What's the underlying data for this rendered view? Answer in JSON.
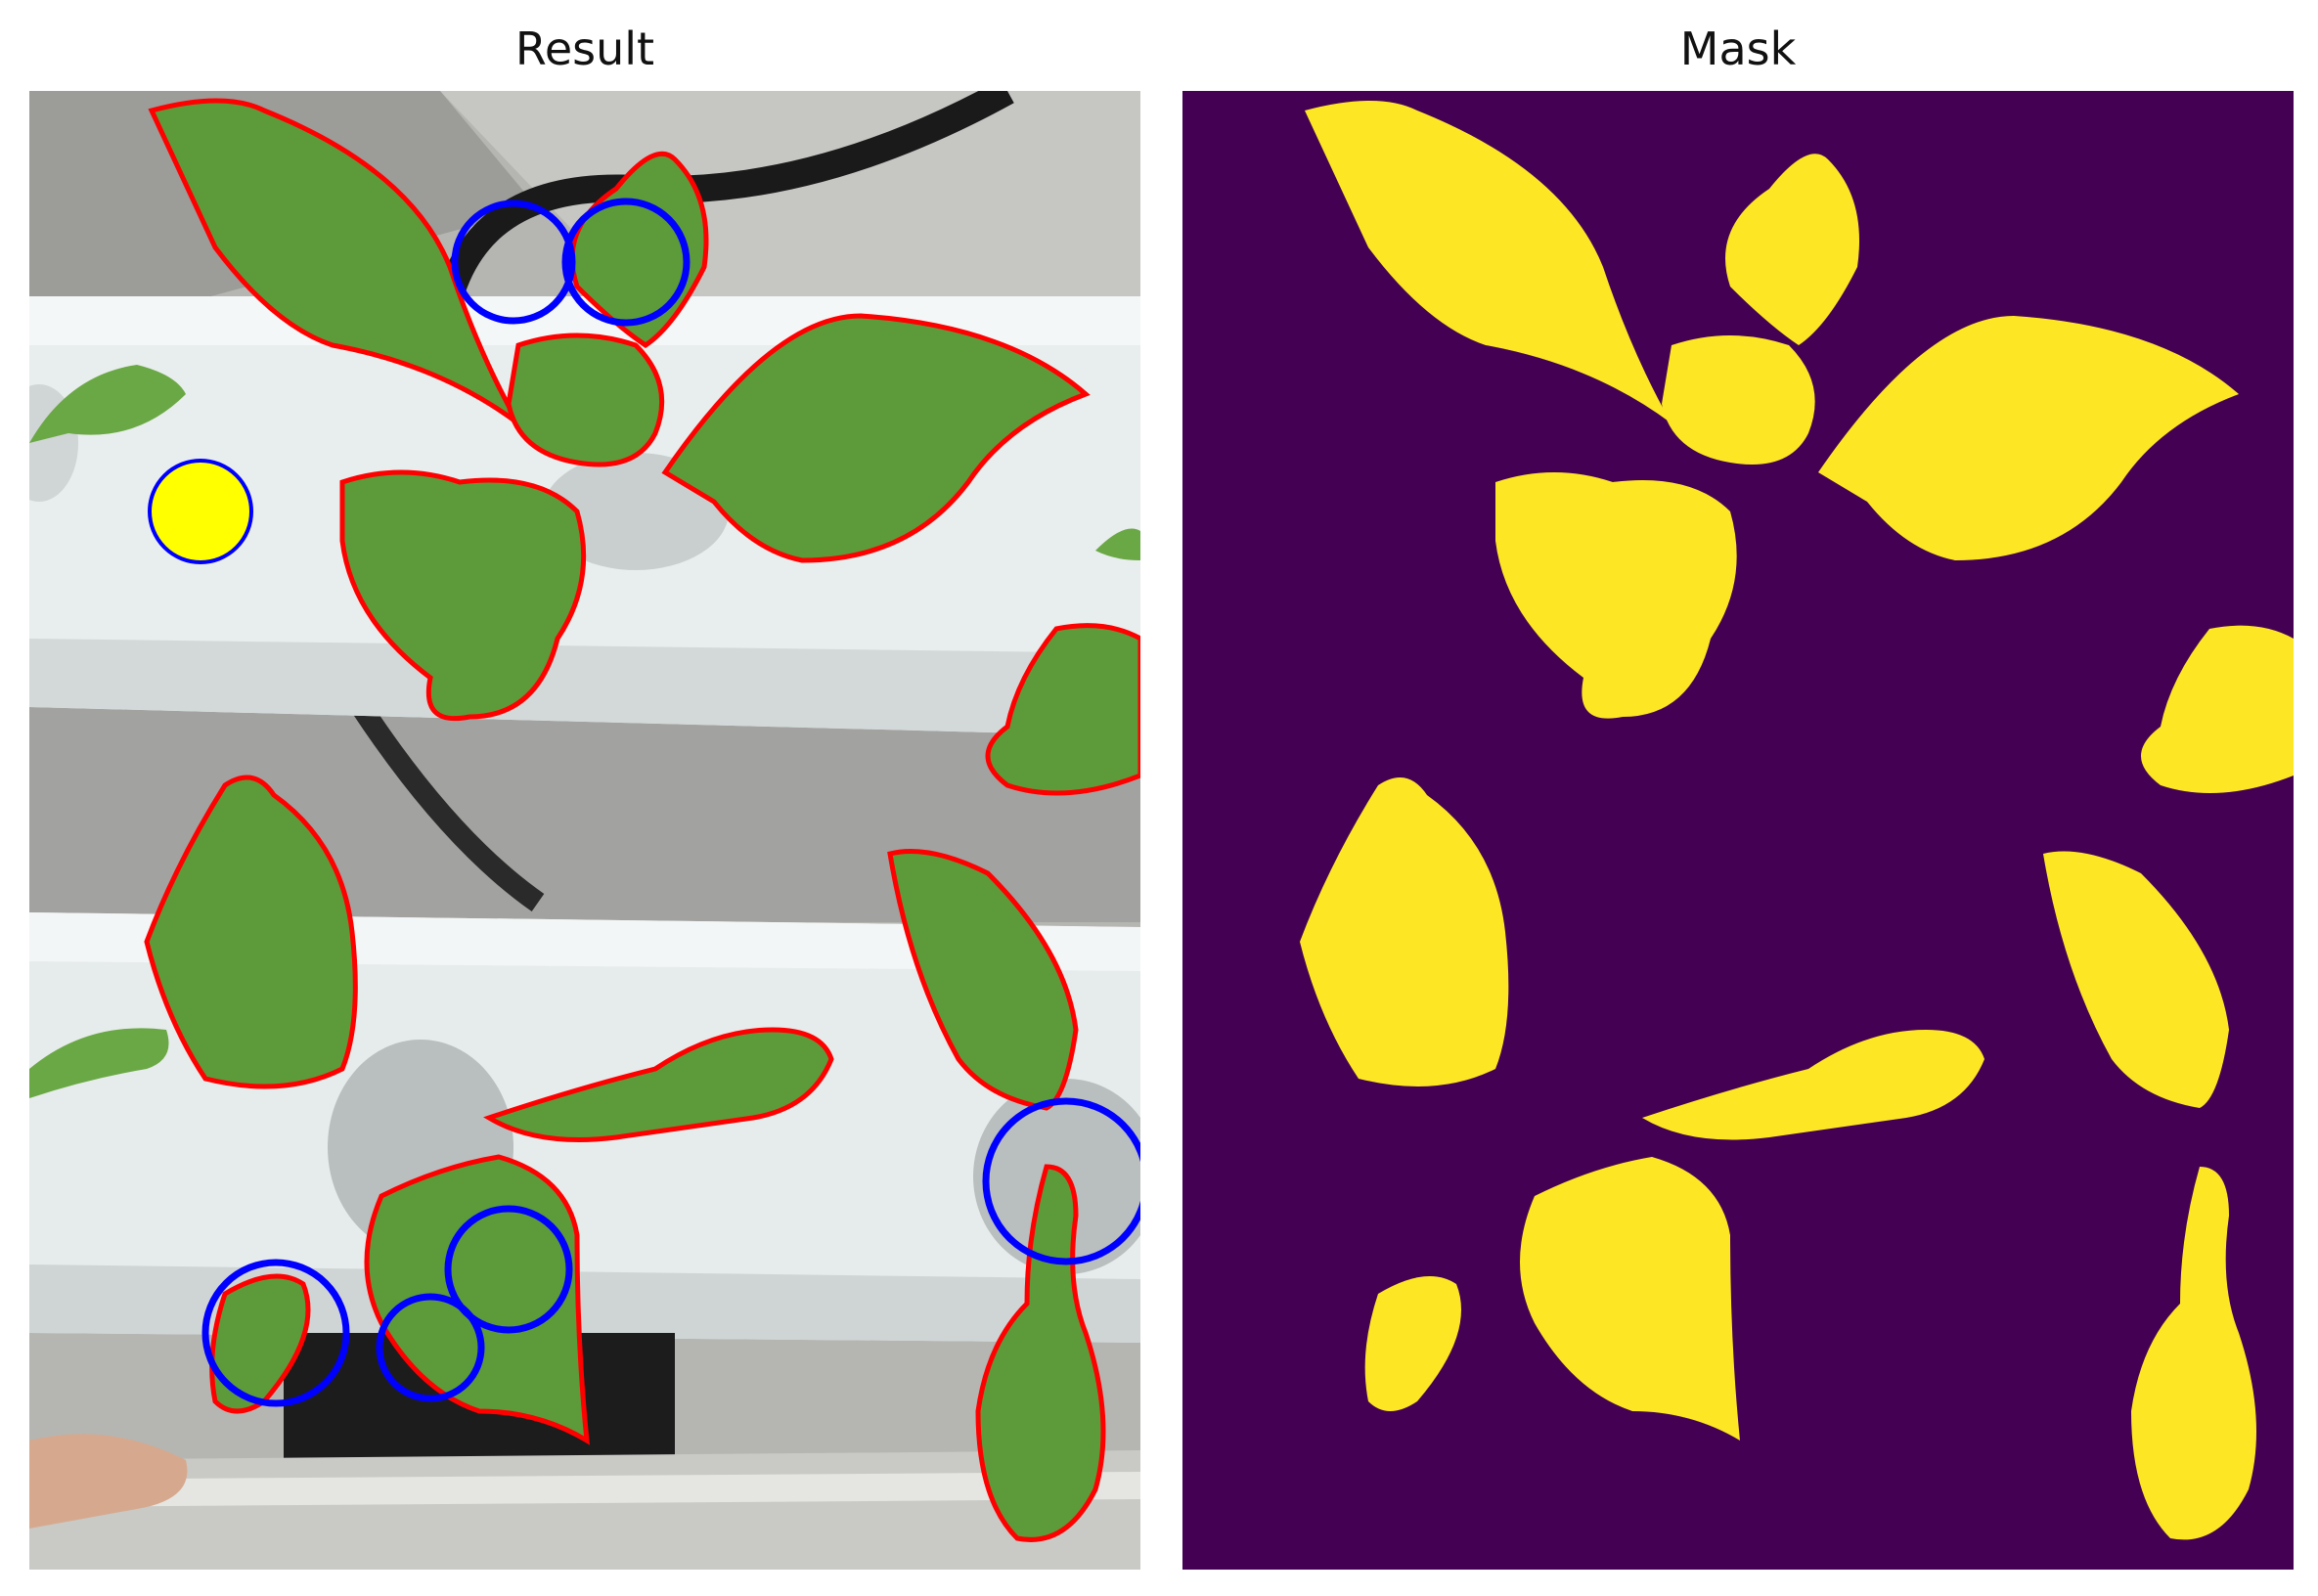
{
  "panels": {
    "result": {
      "title": "Result"
    },
    "mask": {
      "title": "Mask"
    }
  },
  "colors": {
    "background": "#ffffff",
    "leaf": "#5d9a3a",
    "leaf_dark": "#3f7a28",
    "contour": "#ff0000",
    "marker_blue": "#0000ff",
    "marker_yellow": "#ffff00",
    "pipe": "#e9eeee",
    "ground": "#a8a8a6",
    "mask_bg": "#440154",
    "mask_fg": "#fde725"
  },
  "legend_markers": {
    "blue_circles": 7,
    "yellow_dots": 1
  }
}
